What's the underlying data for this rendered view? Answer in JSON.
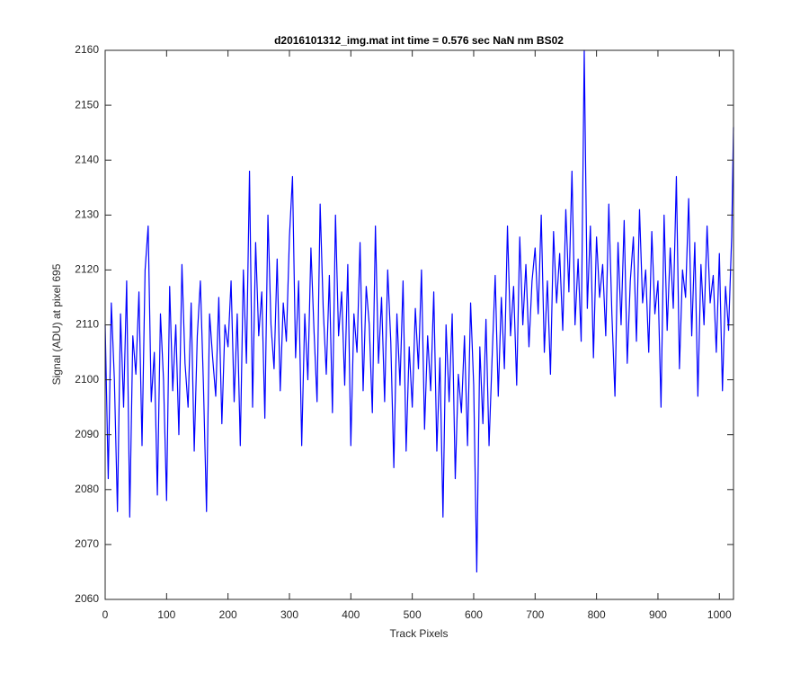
{
  "chart_data": {
    "type": "line",
    "title": "d2016101312_img.mat int time = 0.576 sec  NaN nm BS02",
    "xlabel": "Track Pixels",
    "ylabel": "Signal (ADU) at pixel 695",
    "xlim": [
      0,
      1023
    ],
    "xticks": [
      0,
      100,
      200,
      300,
      400,
      500,
      600,
      700,
      800,
      900,
      1000
    ],
    "ylim": [
      2060,
      2160
    ],
    "yticks": [
      2060,
      2070,
      2080,
      2090,
      2100,
      2110,
      2120,
      2130,
      2140,
      2150,
      2160
    ],
    "grid": false,
    "x": [
      0,
      5,
      10,
      15,
      20,
      25,
      30,
      35,
      40,
      45,
      50,
      55,
      60,
      65,
      70,
      75,
      80,
      85,
      90,
      95,
      100,
      105,
      110,
      115,
      120,
      125,
      130,
      135,
      140,
      145,
      150,
      155,
      160,
      165,
      170,
      175,
      180,
      185,
      190,
      195,
      200,
      205,
      210,
      215,
      220,
      225,
      230,
      235,
      240,
      245,
      250,
      255,
      260,
      265,
      270,
      275,
      280,
      285,
      290,
      295,
      300,
      305,
      310,
      315,
      320,
      325,
      330,
      335,
      340,
      345,
      350,
      355,
      360,
      365,
      370,
      375,
      380,
      385,
      390,
      395,
      400,
      405,
      410,
      415,
      420,
      425,
      430,
      435,
      440,
      445,
      450,
      455,
      460,
      465,
      470,
      475,
      480,
      485,
      490,
      495,
      500,
      505,
      510,
      515,
      520,
      525,
      530,
      535,
      540,
      545,
      550,
      555,
      560,
      565,
      570,
      575,
      580,
      585,
      590,
      595,
      600,
      605,
      610,
      615,
      620,
      625,
      630,
      635,
      640,
      645,
      650,
      655,
      660,
      665,
      670,
      675,
      680,
      685,
      690,
      695,
      700,
      705,
      710,
      715,
      720,
      725,
      730,
      735,
      740,
      745,
      750,
      755,
      760,
      765,
      770,
      775,
      780,
      785,
      790,
      795,
      800,
      805,
      810,
      815,
      820,
      825,
      830,
      835,
      840,
      845,
      850,
      855,
      860,
      865,
      870,
      875,
      880,
      885,
      890,
      895,
      900,
      905,
      910,
      915,
      920,
      925,
      930,
      935,
      940,
      945,
      950,
      955,
      960,
      965,
      970,
      975,
      980,
      985,
      990,
      995,
      1000,
      1005,
      1010,
      1015,
      1020,
      1023
    ],
    "series": [
      {
        "name": "Signal",
        "color": "#0000ff",
        "values": [
          2110,
          2082,
          2114,
          2100,
          2076,
          2112,
          2095,
          2118,
          2075,
          2108,
          2101,
          2116,
          2088,
          2120,
          2128,
          2096,
          2105,
          2079,
          2112,
          2100,
          2078,
          2117,
          2098,
          2110,
          2090,
          2121,
          2103,
          2095,
          2114,
          2087,
          2108,
          2118,
          2099,
          2076,
          2112,
          2104,
          2097,
          2115,
          2092,
          2110,
          2106,
          2118,
          2096,
          2112,
          2088,
          2120,
          2103,
          2138,
          2095,
          2125,
          2108,
          2116,
          2093,
          2130,
          2110,
          2102,
          2122,
          2098,
          2114,
          2107,
          2126,
          2137,
          2104,
          2118,
          2088,
          2112,
          2100,
          2124,
          2109,
          2096,
          2132,
          2113,
          2101,
          2119,
          2094,
          2130,
          2108,
          2116,
          2099,
          2121,
          2088,
          2112,
          2105,
          2125,
          2098,
          2117,
          2110,
          2094,
          2128,
          2103,
          2115,
          2096,
          2120,
          2107,
          2084,
          2112,
          2099,
          2118,
          2087,
          2106,
          2095,
          2113,
          2102,
          2120,
          2091,
          2108,
          2098,
          2116,
          2087,
          2104,
          2075,
          2110,
          2096,
          2112,
          2082,
          2101,
          2094,
          2108,
          2088,
          2114,
          2099,
          2065,
          2106,
          2092,
          2111,
          2088,
          2104,
          2119,
          2097,
          2115,
          2102,
          2128,
          2108,
          2117,
          2099,
          2126,
          2110,
          2121,
          2106,
          2118,
          2124,
          2112,
          2130,
          2105,
          2118,
          2101,
          2127,
          2114,
          2123,
          2109,
          2131,
          2116,
          2138,
          2110,
          2122,
          2107,
          2160,
          2113,
          2128,
          2104,
          2126,
          2115,
          2121,
          2108,
          2132,
          2112,
          2097,
          2125,
          2110,
          2129,
          2103,
          2118,
          2126,
          2107,
          2131,
          2114,
          2120,
          2105,
          2127,
          2112,
          2118,
          2095,
          2130,
          2109,
          2124,
          2113,
          2137,
          2102,
          2120,
          2115,
          2133,
          2108,
          2125,
          2097,
          2121,
          2110,
          2128,
          2114,
          2119,
          2105,
          2123,
          2098,
          2117,
          2109,
          2126,
          2146
        ]
      }
    ]
  }
}
